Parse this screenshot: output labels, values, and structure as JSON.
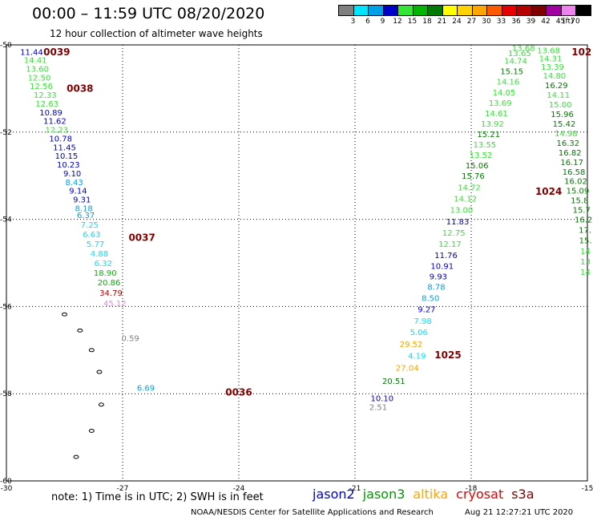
{
  "header": {
    "title": "00:00 – 11:59 UTC 08/20/2020",
    "subtitle": "12 hour collection of altimeter wave heights"
  },
  "legend": {
    "unit": "(ft)",
    "bins": [
      {
        "label": "3",
        "color": "#7f7f7f"
      },
      {
        "label": "6",
        "color": "#00e5ff"
      },
      {
        "label": "9",
        "color": "#00a0e6"
      },
      {
        "label": "12",
        "color": "#0000cc"
      },
      {
        "label": "15",
        "color": "#33e633"
      },
      {
        "label": "18",
        "color": "#00b400"
      },
      {
        "label": "21",
        "color": "#007a00"
      },
      {
        "label": "24",
        "color": "#ffff00"
      },
      {
        "label": "27",
        "color": "#ffd200"
      },
      {
        "label": "30",
        "color": "#ffa500"
      },
      {
        "label": "33",
        "color": "#ff5a00"
      },
      {
        "label": "36",
        "color": "#e60000"
      },
      {
        "label": "39",
        "color": "#b40000"
      },
      {
        "label": "42",
        "color": "#800000"
      },
      {
        "label": "45",
        "color": "#a000a0"
      },
      {
        "label": "70",
        "color": "#ee82ee"
      },
      {
        "label": "",
        "color": "#000000"
      }
    ]
  },
  "footer": {
    "note": "note: 1) Time is in UTC; 2) SWH is in feet",
    "credit": "NOAA/NESDIS Center for Satellite Applications and Research",
    "timestamp": "Aug 21 12:27:21 UTC 2020",
    "satellites": [
      {
        "name": "jason2",
        "color": "#0000cc"
      },
      {
        "name": "jason3",
        "color": "#009900"
      },
      {
        "name": "altika",
        "color": "#ffa500"
      },
      {
        "name": "cryosat",
        "color": "#e60000"
      },
      {
        "name": "s3a",
        "color": "#800000"
      }
    ]
  },
  "chart_data": {
    "type": "scatter",
    "title": "00:00 – 11:59 UTC 08/20/2020",
    "subtitle": "12 hour collection of altimeter wave heights",
    "xlim": [
      -30,
      -15
    ],
    "ylim": [
      -60,
      -50
    ],
    "x_ticks": [
      -30,
      -27,
      -24,
      -21,
      -18,
      -15
    ],
    "y_ticks": [
      -50,
      -52,
      -54,
      -56,
      -58,
      -60
    ],
    "grid": true,
    "legend_position": "top-right",
    "time_labels": [
      {
        "text": "0039",
        "x": -28.7,
        "y": -50.15
      },
      {
        "text": "0038",
        "x": -28.1,
        "y": -50.98
      },
      {
        "text": "0037",
        "x": -26.5,
        "y": -54.4
      },
      {
        "text": "0036",
        "x": -24.0,
        "y": -57.95
      },
      {
        "text": "1024",
        "x": -16.0,
        "y": -53.35
      },
      {
        "text": "1025",
        "x": -18.6,
        "y": -57.1
      },
      {
        "text": "102",
        "x": -15.15,
        "y": -50.15
      }
    ],
    "series": [
      {
        "name": "jason2",
        "points": [
          {
            "x": -29.35,
            "y": -50.16,
            "v": "11.44",
            "c": "#0000cc"
          },
          {
            "x": -29.25,
            "y": -50.34,
            "v": "14.41",
            "c": "#33e633"
          },
          {
            "x": -29.2,
            "y": -50.54,
            "v": "13.60",
            "c": "#33e633"
          },
          {
            "x": -29.15,
            "y": -50.74,
            "v": "12.50",
            "c": "#33e633"
          },
          {
            "x": -29.1,
            "y": -50.94,
            "v": "12.56",
            "c": "#33e633"
          },
          {
            "x": -29.0,
            "y": -51.14,
            "v": "12.33",
            "c": "#33e633"
          },
          {
            "x": -28.95,
            "y": -51.34,
            "v": "12.63",
            "c": "#33e633"
          },
          {
            "x": -28.85,
            "y": -51.54,
            "v": "10.89",
            "c": "#0000cc"
          },
          {
            "x": -28.75,
            "y": -51.74,
            "v": "11.62",
            "c": "#0000cc"
          },
          {
            "x": -28.7,
            "y": -51.94,
            "v": "12.23",
            "c": "#33e633"
          },
          {
            "x": -28.6,
            "y": -52.14,
            "v": "10.78",
            "c": "#0000cc"
          },
          {
            "x": -28.5,
            "y": -52.34,
            "v": "11.45",
            "c": "#0000cc"
          },
          {
            "x": -28.45,
            "y": -52.54,
            "v": "10.15",
            "c": "#0000cc"
          },
          {
            "x": -28.4,
            "y": -52.74,
            "v": "10.23",
            "c": "#0000cc"
          },
          {
            "x": -28.3,
            "y": -52.94,
            "v": "9.10",
            "c": "#0000cc"
          },
          {
            "x": -28.25,
            "y": -53.14,
            "v": "8.43",
            "c": "#00a0e6"
          },
          {
            "x": -28.15,
            "y": -53.34,
            "v": "9.14",
            "c": "#0000cc"
          },
          {
            "x": -28.05,
            "y": -53.54,
            "v": "9.31",
            "c": "#0000cc"
          },
          {
            "x": -28.0,
            "y": -53.74,
            "v": "8.18",
            "c": "#00a0e6"
          },
          {
            "x": -27.95,
            "y": -53.9,
            "v": "6.37",
            "c": "#00a0e6"
          },
          {
            "x": -27.85,
            "y": -54.12,
            "v": "7.25",
            "c": "#00e5ff"
          },
          {
            "x": -27.8,
            "y": -54.34,
            "v": "6.63",
            "c": "#00e5ff"
          },
          {
            "x": -27.7,
            "y": -54.56,
            "v": "5.77",
            "c": "#00e5ff"
          },
          {
            "x": -27.6,
            "y": -54.78,
            "v": "4.88",
            "c": "#00e5ff"
          },
          {
            "x": -27.5,
            "y": -55.0,
            "v": "6.32",
            "c": "#00e5ff"
          },
          {
            "x": -27.45,
            "y": -55.22,
            "v": "18.90",
            "c": "#00b400"
          },
          {
            "x": -27.35,
            "y": -55.44,
            "v": "20.86",
            "c": "#00b400"
          },
          {
            "x": -27.3,
            "y": -55.68,
            "v": "34.79",
            "c": "#b40000"
          },
          {
            "x": -27.2,
            "y": -55.92,
            "v": "45.12",
            "c": "#ee82ee"
          },
          {
            "x": -26.8,
            "y": -56.72,
            "v": "0.59",
            "c": "#7f7f7f"
          },
          {
            "x": -26.4,
            "y": -57.86,
            "v": "6.69",
            "c": "#00a0e6"
          }
        ]
      },
      {
        "name": "jason3",
        "points": [
          {
            "x": -20.3,
            "y": -58.1,
            "v": "10.10",
            "c": "#0000cc"
          },
          {
            "x": -20.4,
            "y": -58.3,
            "v": "2.51",
            "c": "#7f7f7f"
          },
          {
            "x": -20.0,
            "y": -57.7,
            "v": "20.51",
            "c": "#007a00"
          },
          {
            "x": -19.65,
            "y": -57.4,
            "v": "27.04",
            "c": "#ffa500"
          },
          {
            "x": -19.4,
            "y": -57.12,
            "v": "4.19",
            "c": "#00e5ff"
          },
          {
            "x": -19.55,
            "y": -56.86,
            "v": "29.52",
            "c": "#ffa500"
          },
          {
            "x": -19.35,
            "y": -56.58,
            "v": "5.06",
            "c": "#00e5ff"
          },
          {
            "x": -19.25,
            "y": -56.32,
            "v": "7.98",
            "c": "#00e5ff"
          },
          {
            "x": -19.15,
            "y": -56.06,
            "v": "9.27",
            "c": "#0000cc"
          },
          {
            "x": -19.05,
            "y": -55.8,
            "v": "8.50",
            "c": "#00a0e6"
          },
          {
            "x": -18.9,
            "y": -55.54,
            "v": "8.78",
            "c": "#00a0e6"
          },
          {
            "x": -18.85,
            "y": -55.3,
            "v": "9.93",
            "c": "#0000cc"
          },
          {
            "x": -18.75,
            "y": -55.06,
            "v": "10.91",
            "c": "#0000cc"
          },
          {
            "x": -18.65,
            "y": -54.82,
            "v": "11.76",
            "c": "#0000cc"
          },
          {
            "x": -18.55,
            "y": -54.56,
            "v": "12.17",
            "c": "#33e633"
          },
          {
            "x": -18.45,
            "y": -54.3,
            "v": "12.75",
            "c": "#33e633"
          },
          {
            "x": -18.35,
            "y": -54.04,
            "v": "11.83",
            "c": "#0000cc"
          },
          {
            "x": -18.25,
            "y": -53.78,
            "v": "13.00",
            "c": "#33e633"
          },
          {
            "x": -18.15,
            "y": -53.52,
            "v": "14.12",
            "c": "#33e633"
          },
          {
            "x": -18.05,
            "y": -53.26,
            "v": "14.72",
            "c": "#33e633"
          },
          {
            "x": -17.95,
            "y": -53.0,
            "v": "15.76",
            "c": "#007a00"
          },
          {
            "x": -17.85,
            "y": -52.76,
            "v": "15.06",
            "c": "#007a00"
          },
          {
            "x": -17.75,
            "y": -52.52,
            "v": "13.52",
            "c": "#33e633"
          },
          {
            "x": -17.65,
            "y": -52.28,
            "v": "13.55",
            "c": "#33e633"
          },
          {
            "x": -17.55,
            "y": -52.04,
            "v": "15.21",
            "c": "#007a00"
          },
          {
            "x": -17.45,
            "y": -51.8,
            "v": "13.92",
            "c": "#33e633"
          },
          {
            "x": -17.35,
            "y": -51.56,
            "v": "14.61",
            "c": "#33e633"
          },
          {
            "x": -17.25,
            "y": -51.32,
            "v": "13.69",
            "c": "#33e633"
          },
          {
            "x": -17.15,
            "y": -51.08,
            "v": "14.05",
            "c": "#33e633"
          },
          {
            "x": -17.05,
            "y": -50.84,
            "v": "14.16",
            "c": "#33e633"
          },
          {
            "x": -16.95,
            "y": -50.6,
            "v": "15.15",
            "c": "#007a00"
          },
          {
            "x": -16.85,
            "y": -50.36,
            "v": "14.74",
            "c": "#33e633"
          },
          {
            "x": -16.75,
            "y": -50.18,
            "v": "13.65",
            "c": "#33e633"
          },
          {
            "x": -16.65,
            "y": -50.06,
            "v": "13.68",
            "c": "#33e633"
          }
        ]
      },
      {
        "name": "altika",
        "points": [
          {
            "x": -16.0,
            "y": -50.12,
            "v": "13.68",
            "c": "#33e633"
          },
          {
            "x": -15.95,
            "y": -50.3,
            "v": "14.31",
            "c": "#33e633"
          },
          {
            "x": -15.9,
            "y": -50.5,
            "v": "13.39",
            "c": "#33e633"
          },
          {
            "x": -15.85,
            "y": -50.7,
            "v": "14.80",
            "c": "#33e633"
          },
          {
            "x": -15.8,
            "y": -50.92,
            "v": "16.29",
            "c": "#007a00"
          },
          {
            "x": -15.75,
            "y": -51.14,
            "v": "14.11",
            "c": "#33e633"
          },
          {
            "x": -15.7,
            "y": -51.36,
            "v": "15.00",
            "c": "#33e633"
          },
          {
            "x": -15.65,
            "y": -51.58,
            "v": "15.96",
            "c": "#007a00"
          },
          {
            "x": -15.6,
            "y": -51.8,
            "v": "15.42",
            "c": "#007a00"
          },
          {
            "x": -15.55,
            "y": -52.02,
            "v": "14.98",
            "c": "#33e633"
          },
          {
            "x": -15.5,
            "y": -52.24,
            "v": "16.32",
            "c": "#007a00"
          },
          {
            "x": -15.45,
            "y": -52.46,
            "v": "16.82",
            "c": "#007a00"
          },
          {
            "x": -15.4,
            "y": -52.68,
            "v": "16.17",
            "c": "#007a00"
          },
          {
            "x": -15.35,
            "y": -52.9,
            "v": "16.58",
            "c": "#007a00"
          },
          {
            "x": -15.3,
            "y": -53.12,
            "v": "16.02",
            "c": "#007a00"
          },
          {
            "x": -15.25,
            "y": -53.34,
            "v": "15.09",
            "c": "#007a00"
          },
          {
            "x": -15.2,
            "y": -53.56,
            "v": "15.8",
            "c": "#007a00"
          },
          {
            "x": -15.15,
            "y": -53.78,
            "v": "15.7",
            "c": "#007a00"
          },
          {
            "x": -15.1,
            "y": -54.0,
            "v": "16.2",
            "c": "#007a00"
          },
          {
            "x": -15.06,
            "y": -54.24,
            "v": "17.",
            "c": "#007a00"
          },
          {
            "x": -15.05,
            "y": -54.48,
            "v": "15.",
            "c": "#007a00"
          },
          {
            "x": -15.05,
            "y": -54.72,
            "v": "14",
            "c": "#33e633"
          },
          {
            "x": -15.05,
            "y": -54.96,
            "v": "13",
            "c": "#33e633"
          },
          {
            "x": -15.05,
            "y": -55.2,
            "v": "14",
            "c": "#33e633"
          }
        ]
      }
    ],
    "coast_marks": [
      {
        "x": -28.5,
        "y": -56.18
      },
      {
        "x": -28.1,
        "y": -56.55
      },
      {
        "x": -27.8,
        "y": -57.0
      },
      {
        "x": -27.6,
        "y": -57.5
      },
      {
        "x": -27.55,
        "y": -58.25
      },
      {
        "x": -27.8,
        "y": -58.85
      },
      {
        "x": -28.2,
        "y": -59.45
      }
    ]
  }
}
